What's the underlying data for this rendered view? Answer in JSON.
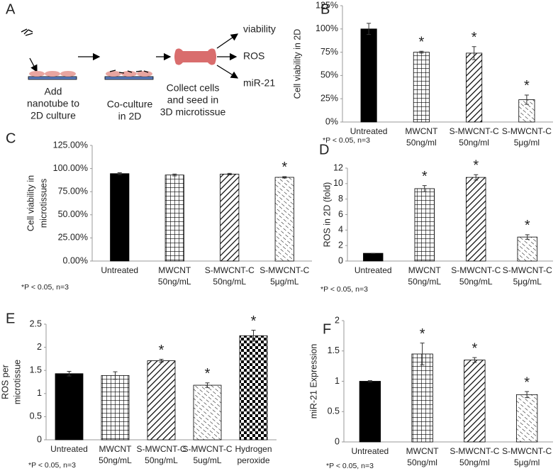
{
  "panel_a": {
    "label": "A",
    "steps": [
      [
        "Add",
        "nanotube to",
        "2D culture"
      ],
      [
        "Co-culture",
        "in 2D"
      ],
      [
        "Collect cells",
        "and seed in",
        "3D microtissue"
      ]
    ],
    "outputs": [
      "viability",
      "ROS",
      "miR-21"
    ]
  },
  "chart_data": [
    {
      "type": "bar",
      "panel": "B",
      "ylabel": "Cell viability in 2D",
      "note": "*P < 0.05, n=3",
      "categories": [
        [
          "Untreated"
        ],
        [
          "MWCNT",
          "50ng/ml"
        ],
        [
          "S-MWCNT-C",
          "50ng/ml"
        ],
        [
          "S-MWCNT-C",
          "5μg/ml"
        ]
      ],
      "values": [
        100,
        75,
        74,
        24
      ],
      "errors": [
        6,
        1,
        7,
        5
      ],
      "significance": [
        null,
        "*",
        "*",
        "*"
      ],
      "patterns": [
        "solid",
        "grid",
        "diagonal",
        "dashed-diagonal"
      ],
      "color": "#000000",
      "ylim": [
        0,
        125
      ],
      "yticks": [
        {
          "value": 0,
          "label": "0%"
        },
        {
          "value": 25,
          "label": "25%"
        },
        {
          "value": 50,
          "label": "50%"
        },
        {
          "value": 75,
          "label": "75%"
        },
        {
          "value": 100,
          "label": "100%"
        },
        {
          "value": 125,
          "label": "125%"
        }
      ]
    },
    {
      "type": "bar",
      "panel": "C",
      "ylabel": [
        "Cell viability in",
        "microtissues"
      ],
      "note": "*P < 0.05, n=3",
      "categories": [
        [
          "Untreated"
        ],
        [
          "MWCNT",
          "50ng/mL"
        ],
        [
          "S-MWCNT-C",
          "50ng/mL"
        ],
        [
          "S-MWCNT-C",
          "5μg/mL"
        ]
      ],
      "values": [
        94.5,
        93,
        94,
        90.5
      ],
      "errors": [
        1,
        1,
        0.8,
        0.8
      ],
      "significance": [
        null,
        null,
        null,
        "*"
      ],
      "patterns": [
        "solid",
        "grid",
        "diagonal",
        "dashed-diagonal"
      ],
      "color": "#000000",
      "ylim": [
        0,
        125
      ],
      "yticks": [
        {
          "value": 0,
          "label": "0.00%"
        },
        {
          "value": 25,
          "label": "25.00%"
        },
        {
          "value": 50,
          "label": "50.00%"
        },
        {
          "value": 75,
          "label": "75.00%"
        },
        {
          "value": 100,
          "label": "100.00%"
        },
        {
          "value": 125,
          "label": "125.00%"
        }
      ]
    },
    {
      "type": "bar",
      "panel": "D",
      "ylabel": "ROS in 2D (fold)",
      "note": "*P < 0.05, n=3",
      "categories": [
        [
          "Untreated"
        ],
        [
          "MWCNT",
          "50ng/mL"
        ],
        [
          "S-MWCNT-C",
          "50ng/mL"
        ],
        [
          "S-MWCNT-C",
          "5μg/mL"
        ]
      ],
      "values": [
        1,
        9.35,
        10.8,
        3.1
      ],
      "errors": [
        0,
        0.4,
        0.35,
        0.3
      ],
      "significance": [
        null,
        "*",
        "*",
        "*"
      ],
      "patterns": [
        "solid",
        "grid",
        "diagonal",
        "dashed-diagonal"
      ],
      "color": "#000000",
      "ylim": [
        0,
        12
      ],
      "yticks": [
        0,
        2,
        4,
        6,
        8,
        10,
        12
      ]
    },
    {
      "type": "bar",
      "panel": "E",
      "ylabel": [
        "ROS per",
        "microtissue"
      ],
      "note": "*P < 0.05, n=3",
      "categories": [
        [
          "Untreated"
        ],
        [
          "MWCNT",
          "50ng/mL"
        ],
        [
          "S-MWCNT-C",
          "50ng/mL"
        ],
        [
          "S-MWCNT-C",
          "5ug/mL"
        ],
        [
          "Hydrogen",
          "peroxide"
        ]
      ],
      "values": [
        1.43,
        1.39,
        1.71,
        1.18,
        2.25
      ],
      "errors": [
        0.05,
        0.08,
        0.03,
        0.05,
        0.12
      ],
      "significance": [
        null,
        null,
        "*",
        "*",
        "*"
      ],
      "patterns": [
        "solid",
        "grid",
        "diagonal",
        "dashed-diagonal",
        "checker"
      ],
      "color": "#000000",
      "ylim": [
        0,
        2.5
      ],
      "yticks": [
        0,
        0.5,
        1,
        1.5,
        2,
        2.5
      ]
    },
    {
      "type": "bar",
      "panel": "F",
      "ylabel": "miR-21 Expression",
      "note": "*P < 0.05, n=3",
      "categories": [
        [
          "Untreated"
        ],
        [
          "MWCNT",
          "50ng/ml"
        ],
        [
          "S-MWCNT-C",
          "50ng/ml"
        ],
        [
          "S-MWCNT-C",
          "5μg/ml"
        ]
      ],
      "values": [
        1,
        1.45,
        1.35,
        0.78
      ],
      "errors": [
        0.01,
        0.18,
        0.04,
        0.05
      ],
      "significance": [
        null,
        "*",
        "*",
        "*"
      ],
      "patterns": [
        "solid",
        "grid",
        "diagonal",
        "dashed-diagonal"
      ],
      "color": "#000000",
      "ylim": [
        0,
        2
      ],
      "yticks": [
        0,
        0.5,
        1,
        1.5,
        2
      ]
    }
  ]
}
